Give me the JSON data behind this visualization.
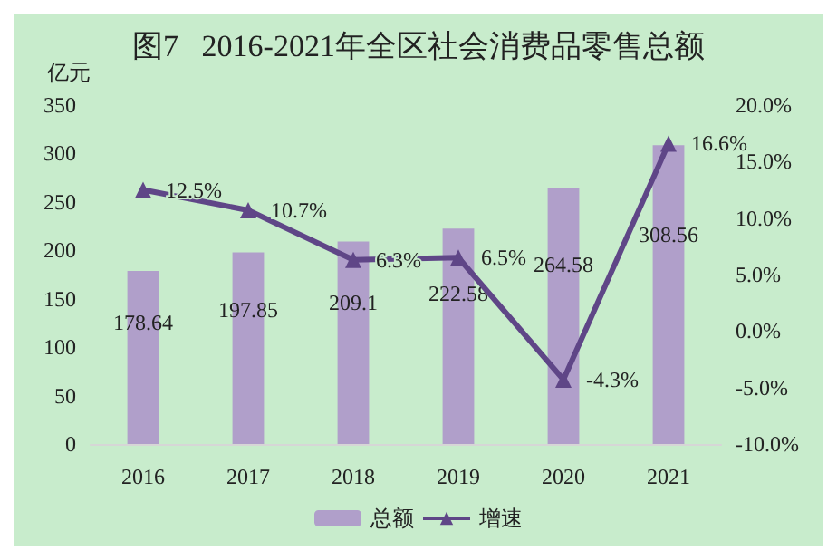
{
  "chart_data": {
    "type": "bar",
    "title": "图7   2016-2021年全区社会消费品零售总额",
    "ylabel": "亿元",
    "categories": [
      "2016",
      "2017",
      "2018",
      "2019",
      "2020",
      "2021"
    ],
    "series": [
      {
        "name": "总额",
        "color": "#b09fca",
        "values": [
          178.64,
          197.85,
          209.1,
          222.58,
          264.58,
          308.56
        ],
        "value_labels": [
          "178.64",
          "197.85",
          "209.1",
          "222.58",
          "264.58",
          "308.56"
        ]
      },
      {
        "name": "增速",
        "type": "line",
        "axis": "y2",
        "color": "#5f4687",
        "marker": "triangle",
        "values": [
          12.5,
          10.7,
          6.3,
          6.5,
          -4.3,
          16.6
        ],
        "value_labels": [
          "12.5%",
          "10.7%",
          "6.3%",
          "6.5%",
          "-4.3%",
          "16.6%"
        ]
      }
    ],
    "ylim": [
      0,
      350
    ],
    "yticks": [
      0,
      50,
      100,
      150,
      200,
      250,
      300,
      350
    ],
    "y2lim": [
      -10,
      20
    ],
    "y2ticks": [
      {
        "value": -10,
        "label": "-10.0%"
      },
      {
        "value": -5,
        "label": "-5.0%"
      },
      {
        "value": 0,
        "label": "0.0%"
      },
      {
        "value": 5,
        "label": "5.0%"
      },
      {
        "value": 10,
        "label": "10.0%"
      },
      {
        "value": 15,
        "label": "15.0%"
      },
      {
        "value": 20,
        "label": "20.0%"
      }
    ],
    "grid": false,
    "legend": "bottom"
  }
}
